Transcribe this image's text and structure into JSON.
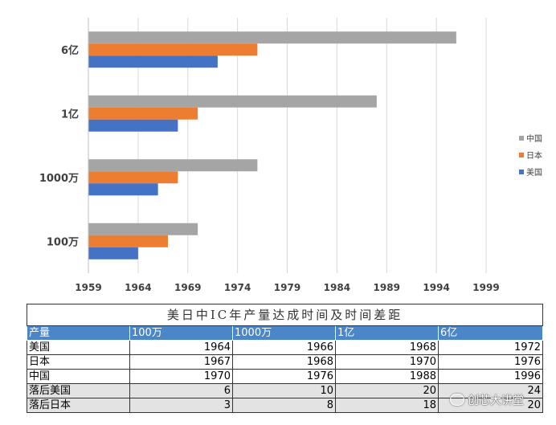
{
  "chart_data": {
    "type": "bar",
    "orientation": "horizontal",
    "categories": [
      "6亿",
      "1亿",
      "1000万",
      "100万"
    ],
    "series": [
      {
        "name": "中国",
        "color": "#a5a5a5",
        "values": [
          1996,
          1988,
          1976,
          1970
        ]
      },
      {
        "name": "日本",
        "color": "#ed7d31",
        "values": [
          1976,
          1970,
          1968,
          1967
        ]
      },
      {
        "name": "美国",
        "color": "#4472c4",
        "values": [
          1972,
          1968,
          1966,
          1964
        ]
      }
    ],
    "xlim": [
      1959,
      2003
    ],
    "xticks": [
      "1959",
      "1964",
      "1969",
      "1974",
      "1979",
      "1984",
      "1989",
      "1994",
      "1999"
    ],
    "grid": true,
    "legend_position": "right"
  },
  "table": {
    "title": "美日中IC年产量达成时间及时间差距",
    "header": [
      "产量",
      "100万",
      "1000万",
      "1亿",
      "6亿"
    ],
    "rows": [
      [
        "美国",
        "1964",
        "1966",
        "1968",
        "1972"
      ],
      [
        "日本",
        "1967",
        "1968",
        "1970",
        "1976"
      ],
      [
        "中国",
        "1970",
        "1976",
        "1988",
        "1996"
      ],
      [
        "落后美国",
        "6",
        "10",
        "20",
        "24"
      ],
      [
        "落后日本",
        "3",
        "8",
        "18",
        "20"
      ]
    ]
  },
  "watermark": {
    "text": "创芯大讲堂",
    "icon": "wechat-icon"
  }
}
